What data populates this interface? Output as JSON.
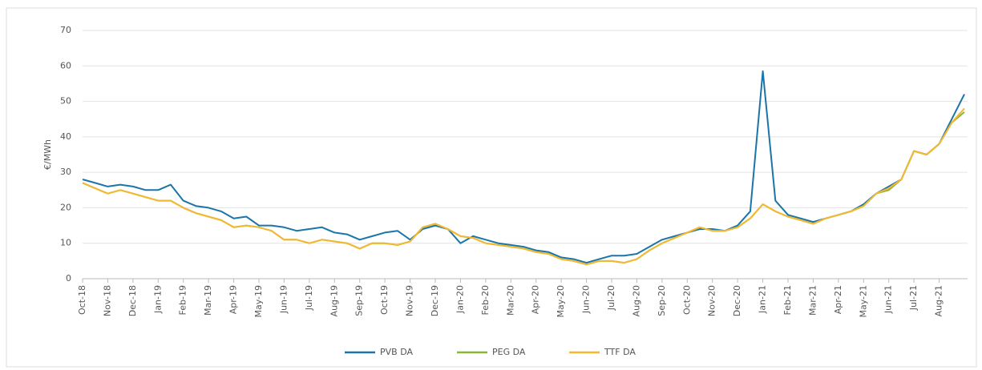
{
  "chart_data": {
    "type": "line",
    "ylabel": "€/MWh",
    "categories": [
      "Oct-18",
      null,
      "Nov-18",
      null,
      "Dec-18",
      null,
      "Jan-19",
      null,
      "Feb-19",
      null,
      "Mar-19",
      null,
      "Apr-19",
      null,
      "May-19",
      null,
      "Jun-19",
      null,
      "Jul-19",
      null,
      "Aug-19",
      null,
      "Sep-19",
      null,
      "Oct-19",
      null,
      "Nov-19",
      null,
      "Dec-19",
      null,
      "Jan-20",
      null,
      "Feb-20",
      null,
      "Mar-20",
      null,
      "Apr-20",
      null,
      "May-20",
      null,
      "Jun-20",
      null,
      "Jul-20",
      null,
      "Aug-20",
      null,
      "Sep-20",
      null,
      "Oct-20",
      null,
      "Nov-20",
      null,
      "Dec-20",
      null,
      "Jan-21",
      null,
      "Feb-21",
      null,
      "Mar-21",
      null,
      "Apr-21",
      null,
      "May-21",
      null,
      "Jun-21",
      null,
      "Jul-21",
      null,
      "Aug-21",
      null,
      null
    ],
    "series": [
      {
        "name": "PVB DA",
        "color": "#1a75a8",
        "values": [
          28,
          27,
          26,
          26.5,
          26,
          25,
          25,
          26.5,
          22,
          20.5,
          20,
          19,
          17,
          17.5,
          15,
          15,
          14.5,
          13.5,
          14,
          14.5,
          13,
          12.5,
          11,
          12,
          13,
          13.5,
          11,
          14,
          15,
          14,
          10,
          12,
          11,
          10,
          9.5,
          9,
          8,
          7.5,
          6,
          5.5,
          4.5,
          5.5,
          6.5,
          6.5,
          7,
          9,
          11,
          12,
          13,
          14,
          14,
          13.5,
          15,
          19,
          58.5,
          22,
          18,
          17,
          16,
          17,
          18,
          19,
          21,
          24,
          26,
          28,
          36,
          35,
          38,
          45,
          52
        ]
      },
      {
        "name": "PEG DA",
        "color": "#8db33a",
        "values": [
          27,
          25.5,
          24,
          25,
          24,
          23,
          22,
          22,
          20,
          18.5,
          17.5,
          16.5,
          14.5,
          15,
          14.5,
          13.5,
          11,
          11,
          10,
          11,
          10.5,
          10,
          8.5,
          10,
          10,
          9.5,
          10.5,
          14.5,
          15.5,
          14,
          12,
          11.5,
          10,
          9.5,
          9,
          8.5,
          7.5,
          7,
          5.5,
          5,
          4,
          5,
          5,
          4.5,
          5.5,
          8,
          10,
          11.5,
          13,
          14.5,
          13.5,
          13.5,
          14.5,
          17,
          21,
          19,
          17.5,
          16.5,
          15.5,
          17,
          18,
          19,
          20.5,
          24,
          25,
          28,
          36,
          35,
          38,
          44,
          47
        ]
      },
      {
        "name": "TTF DA",
        "color": "#f5b82e",
        "values": [
          27,
          25.5,
          24,
          25,
          24,
          23,
          22,
          22,
          20,
          18.5,
          17.5,
          16.5,
          14.5,
          15,
          14.5,
          13.5,
          11,
          11,
          10,
          11,
          10.5,
          10,
          8.5,
          10,
          10,
          9.5,
          10.5,
          14.5,
          15.5,
          14,
          12,
          11.5,
          10,
          9.5,
          9,
          8.5,
          7.5,
          7,
          5.5,
          5,
          4,
          5,
          5,
          4.5,
          5.5,
          8,
          10,
          11.5,
          13,
          14.5,
          13.5,
          13.5,
          14.5,
          17,
          21,
          19,
          17.5,
          16.5,
          15.5,
          17,
          18,
          19,
          20.5,
          24,
          25.5,
          28,
          36,
          35,
          38,
          44,
          48
        ]
      }
    ],
    "ylim": [
      0,
      70
    ],
    "yticks": [
      0,
      10,
      20,
      30,
      40,
      50,
      60,
      70
    ],
    "grid": true,
    "legend": "bottom"
  }
}
